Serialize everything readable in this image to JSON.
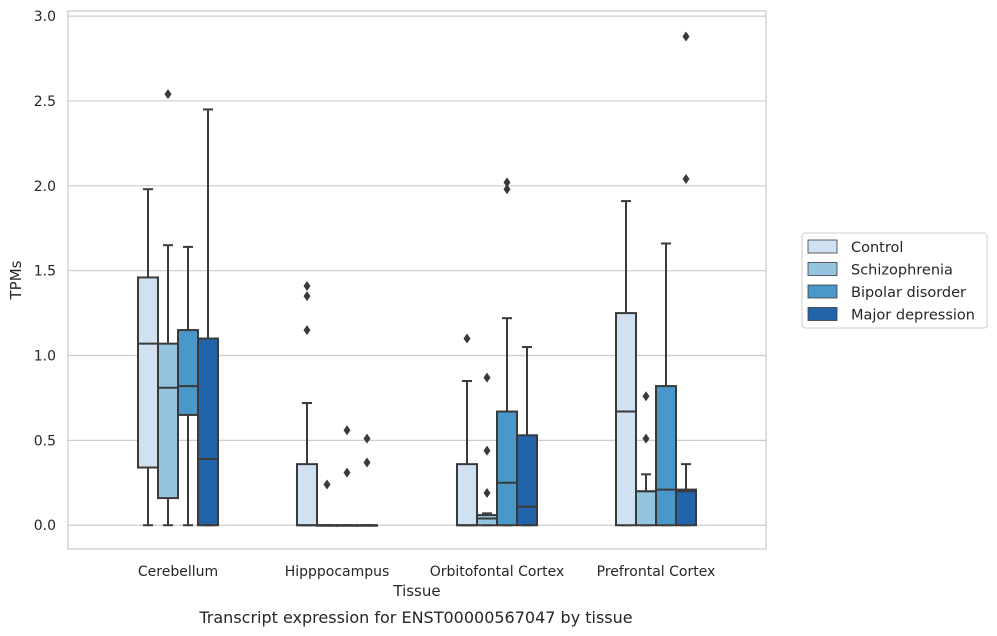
{
  "caption": "Transcript expression for ENST00000567047 by tissue",
  "colors": {
    "Control": "#d0e1f2",
    "Schizophrenia": "#94c4df",
    "Bipolar disorder": "#4a98c9",
    "Major depression": "#2264aa",
    "line": "#3a3a3a",
    "grid": "#cccccc"
  },
  "chart_data": {
    "type": "box",
    "xlabel": "Tissue",
    "ylabel": "TPMs",
    "ylim": [
      -0.14,
      3.03
    ],
    "yticks": [
      "0.0",
      "0.5",
      "1.0",
      "1.5",
      "2.0",
      "2.5",
      "3.0"
    ],
    "grid": "horizontal",
    "legend_position": "right",
    "categories": [
      "Cerebellum",
      "Hipppocampus",
      "Orbitofontal Cortex",
      "Prefrontal Cortex"
    ],
    "series": [
      {
        "name": "Control",
        "boxes": [
          {
            "low": 0.0,
            "q1": 0.34,
            "median": 1.07,
            "q3": 1.46,
            "high": 1.98,
            "outliers": []
          },
          {
            "low": 0.0,
            "q1": 0.0,
            "median": 0.0,
            "q3": 0.36,
            "high": 0.72,
            "outliers": [
              1.41,
              1.35,
              1.15
            ]
          },
          {
            "low": 0.0,
            "q1": 0.0,
            "median": 0.0,
            "q3": 0.36,
            "high": 0.85,
            "outliers": [
              1.1
            ]
          },
          {
            "low": 0.0,
            "q1": 0.0,
            "median": 0.67,
            "q3": 1.25,
            "high": 1.91,
            "outliers": []
          }
        ]
      },
      {
        "name": "Schizophrenia",
        "boxes": [
          {
            "low": 0.0,
            "q1": 0.16,
            "median": 0.81,
            "q3": 1.07,
            "high": 1.65,
            "outliers": [
              2.54
            ]
          },
          {
            "low": 0.0,
            "q1": 0.0,
            "median": 0.0,
            "q3": 0.0,
            "high": 0.0,
            "outliers": [
              0.24
            ]
          },
          {
            "low": 0.0,
            "q1": 0.0,
            "median": 0.04,
            "q3": 0.06,
            "high": 0.07,
            "outliers": [
              0.87,
              0.44,
              0.19
            ]
          },
          {
            "low": 0.0,
            "q1": 0.0,
            "median": 0.2,
            "q3": 0.2,
            "high": 0.3,
            "outliers": [
              0.76,
              0.51
            ]
          }
        ]
      },
      {
        "name": "Bipolar disorder",
        "boxes": [
          {
            "low": 0.0,
            "q1": 0.65,
            "median": 0.82,
            "q3": 1.15,
            "high": 1.64,
            "outliers": []
          },
          {
            "low": 0.0,
            "q1": 0.0,
            "median": 0.0,
            "q3": 0.0,
            "high": 0.0,
            "outliers": [
              0.56,
              0.31
            ]
          },
          {
            "low": 0.0,
            "q1": 0.0,
            "median": 0.25,
            "q3": 0.67,
            "high": 1.22,
            "outliers": [
              2.02,
              1.98
            ]
          },
          {
            "low": 0.0,
            "q1": 0.0,
            "median": 0.21,
            "q3": 0.82,
            "high": 1.66,
            "outliers": []
          }
        ]
      },
      {
        "name": "Major depression",
        "boxes": [
          {
            "low": 0.0,
            "q1": 0.0,
            "median": 0.39,
            "q3": 1.1,
            "high": 2.45,
            "outliers": []
          },
          {
            "low": 0.0,
            "q1": 0.0,
            "median": 0.0,
            "q3": 0.0,
            "high": 0.0,
            "outliers": [
              0.51,
              0.37
            ]
          },
          {
            "low": 0.0,
            "q1": 0.0,
            "median": 0.11,
            "q3": 0.53,
            "high": 1.05,
            "outliers": []
          },
          {
            "low": 0.0,
            "q1": 0.0,
            "median": 0.2,
            "q3": 0.21,
            "high": 0.36,
            "outliers": [
              2.88,
              2.04
            ]
          }
        ]
      }
    ]
  }
}
